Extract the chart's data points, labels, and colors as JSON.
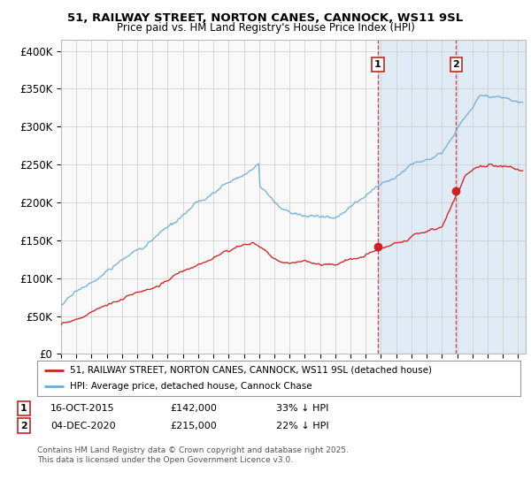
{
  "title_line1": "51, RAILWAY STREET, NORTON CANES, CANNOCK, WS11 9SL",
  "title_line2": "Price paid vs. HM Land Registry's House Price Index (HPI)",
  "ylabel_ticks": [
    "£0",
    "£50K",
    "£100K",
    "£150K",
    "£200K",
    "£250K",
    "£300K",
    "£350K",
    "£400K"
  ],
  "ytick_values": [
    0,
    50000,
    100000,
    150000,
    200000,
    250000,
    300000,
    350000,
    400000
  ],
  "ylim": [
    0,
    415000
  ],
  "xlim_start": 1995.0,
  "xlim_end": 2025.5,
  "hpi_color": "#6baed6",
  "price_color": "#cc2222",
  "sale1_date": "16-OCT-2015",
  "sale1_price": 142000,
  "sale1_label": "33% ↓ HPI",
  "sale2_date": "04-DEC-2020",
  "sale2_price": 215000,
  "sale2_label": "22% ↓ HPI",
  "sale1_x": 2015.79,
  "sale2_x": 2020.92,
  "legend_line1": "51, RAILWAY STREET, NORTON CANES, CANNOCK, WS11 9SL (detached house)",
  "legend_line2": "HPI: Average price, detached house, Cannock Chase",
  "footnote": "Contains HM Land Registry data © Crown copyright and database right 2025.\nThis data is licensed under the Open Government Licence v3.0.",
  "background_color": "#ffffff",
  "plot_bg_color": "#f9f9f9",
  "grid_color": "#cccccc",
  "vline_color": "#cc2222",
  "highlight_bg": "#ddeeff"
}
